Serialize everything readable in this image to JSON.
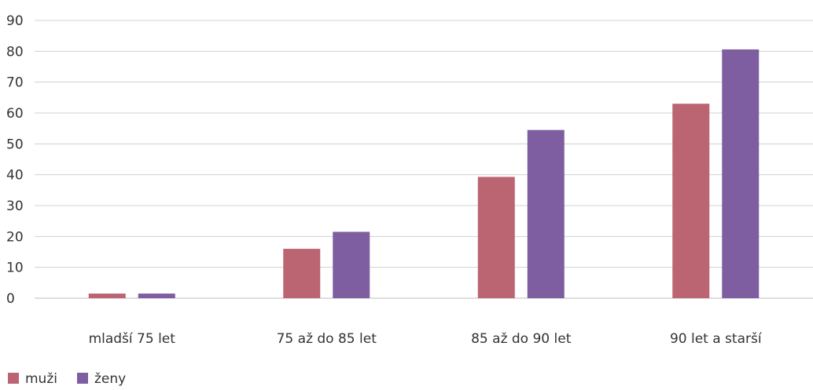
{
  "chart_data": {
    "type": "bar",
    "title": "",
    "xlabel": "",
    "ylabel": "",
    "categories": [
      "mladší 75 let",
      "75 až do 85 let",
      "85 až do 90 let",
      "90 let a starší"
    ],
    "series": [
      {
        "name": "muži",
        "values": [
          1.5,
          16,
          39.3,
          63
        ],
        "color": "#bb6472"
      },
      {
        "name": "ženy",
        "values": [
          1.5,
          21.5,
          54.5,
          80.6
        ],
        "color": "#7e5ea0"
      }
    ],
    "ylim": [
      0,
      90
    ],
    "yticks": [
      0,
      10,
      20,
      30,
      40,
      50,
      60,
      70,
      80,
      90
    ],
    "grid": true,
    "legend": "bottom-left"
  }
}
